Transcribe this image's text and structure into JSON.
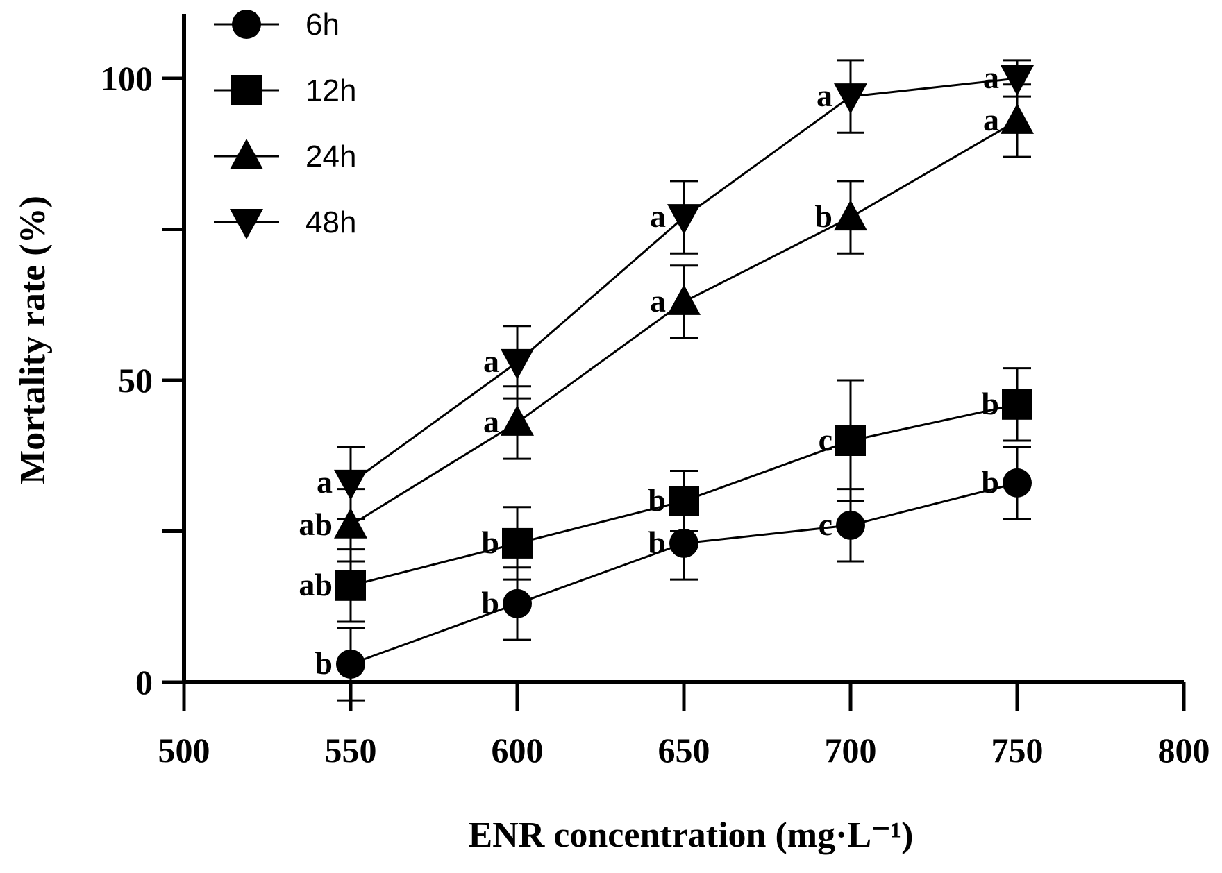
{
  "chart_data": {
    "type": "line",
    "title": "",
    "xlabel": "ENR concentration (mg·L⁻¹)",
    "ylabel": "Mortality rate (%)",
    "xlim": [
      500,
      800
    ],
    "ylim": [
      0,
      110
    ],
    "x_ticks": [
      500,
      550,
      600,
      650,
      700,
      750,
      800
    ],
    "y_ticks_labeled": [
      0,
      50,
      100
    ],
    "y_ticks_minor": [
      25,
      75
    ],
    "grid": false,
    "legend_position": "top-left",
    "x": [
      550,
      600,
      650,
      700,
      750
    ],
    "series": [
      {
        "name": "6h",
        "marker": "circle",
        "values": [
          3,
          13,
          23,
          26,
          33
        ],
        "errors": [
          6,
          6,
          6,
          6,
          6
        ],
        "significance": [
          "b",
          "b",
          "b",
          "c",
          "b"
        ]
      },
      {
        "name": "12h",
        "marker": "square",
        "values": [
          16,
          23,
          30,
          40,
          46
        ],
        "errors": [
          6,
          6,
          5,
          10,
          6
        ],
        "significance": [
          "ab",
          "b",
          "b",
          "c",
          "b"
        ]
      },
      {
        "name": "24h",
        "marker": "triangle-up",
        "values": [
          26,
          43,
          63,
          77,
          93
        ],
        "errors": [
          6,
          6,
          6,
          6,
          6
        ],
        "significance": [
          "ab",
          "a",
          "a",
          "b",
          "a"
        ]
      },
      {
        "name": "48h",
        "marker": "triangle-down",
        "values": [
          33,
          53,
          77,
          97,
          100
        ],
        "errors": [
          6,
          6,
          6,
          6,
          3
        ],
        "significance": [
          "a",
          "a",
          "a",
          "a",
          "a"
        ]
      }
    ]
  }
}
